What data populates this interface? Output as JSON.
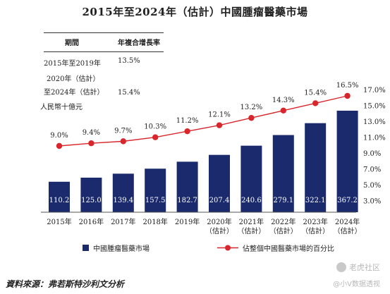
{
  "title": "2015年至2024年（估計）中國腫瘤醫藥市場",
  "cagr_table": {
    "header": {
      "period": "期間",
      "cagr": "年複合增長率"
    },
    "rows": [
      {
        "period_line1": "2015年至2019年",
        "period_line2": "",
        "cagr": "13.5%"
      },
      {
        "period_line1": "2020年（估計）",
        "period_line2": "至2024年（估計）",
        "cagr": "15.4%"
      }
    ]
  },
  "unit_label": "人民幣十億元",
  "chart_data": {
    "type": "bar+line",
    "categories": [
      [
        "2015年"
      ],
      [
        "2016年"
      ],
      [
        "2017年"
      ],
      [
        "2018年"
      ],
      [
        "2019年"
      ],
      [
        "2020年",
        "（估計）"
      ],
      [
        "2021年",
        "（估計）"
      ],
      [
        "2022年",
        "（估計）"
      ],
      [
        "2023年",
        "（估計）"
      ],
      [
        "2024年",
        "（估計）"
      ]
    ],
    "series": [
      {
        "name": "中國腫瘤醫藥市場",
        "kind": "bar",
        "color": "#1a2a6c",
        "values": [
          110.2,
          125.0,
          139.4,
          157.5,
          182.7,
          207.4,
          240.6,
          279.1,
          322.1,
          367.2
        ],
        "labels": [
          "110.2",
          "125.0",
          "139.4",
          "157.5",
          "182.7",
          "207.4",
          "240.6",
          "279.1",
          "322.1",
          "367.2"
        ]
      },
      {
        "name": "佔整個中國醫藥市場的百分比",
        "kind": "line",
        "color": "#d9262c",
        "values": [
          9.0,
          9.4,
          9.7,
          10.3,
          11.2,
          12.1,
          13.2,
          14.3,
          15.4,
          16.5
        ],
        "labels": [
          "9.0%",
          "9.4%",
          "9.7%",
          "10.3%",
          "11.2%",
          "12.1%",
          "13.2%",
          "14.3%",
          "15.4%",
          "16.5%"
        ]
      }
    ],
    "bar_ymax": 420,
    "right_axis": {
      "ticks": [
        "17.0%",
        "15.0%",
        "13.0%",
        "11.0%",
        "9.0%",
        "7.0%",
        "5.0%",
        "3.0%"
      ],
      "tick_values": [
        17,
        15,
        13,
        11,
        9,
        7,
        5,
        3
      ]
    }
  },
  "source": "資料來源：弗若斯特沙利文分析",
  "watermark": {
    "line1": "老虎社区",
    "line2": "@小V数据透视"
  }
}
